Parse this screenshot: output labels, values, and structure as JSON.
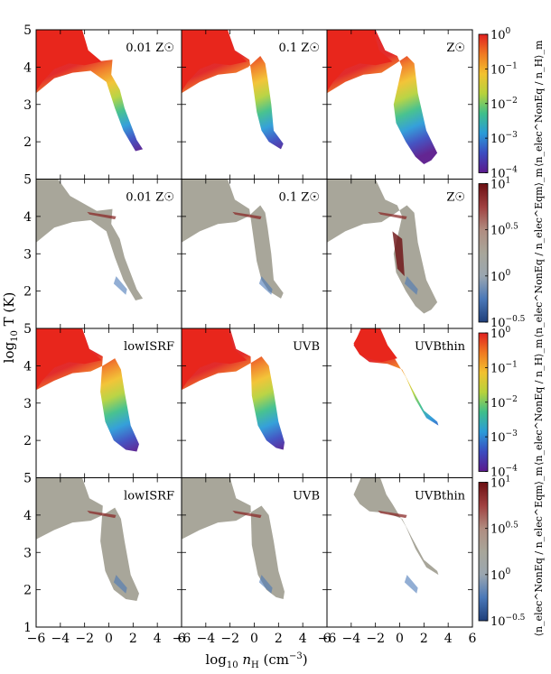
{
  "chart_data": {
    "type": "scatter",
    "title": "",
    "xlabel": "log10 nH (cm^-3)",
    "ylabel": "log10 T (K)",
    "xlim": [
      -6,
      6
    ],
    "ylim": [
      1,
      5
    ],
    "x_ticks": [
      -6,
      -4,
      -2,
      0,
      2,
      4,
      6
    ],
    "x_tick_labels": [
      "−6",
      "−4",
      "−2",
      "0",
      "2",
      "4",
      "6"
    ],
    "y_ticks": [
      1,
      2,
      3,
      4,
      5
    ],
    "y_tick_labels": [
      "1",
      "2",
      "3",
      "4",
      "5"
    ],
    "axis_labels": {
      "x": "log",
      "x_sub": "10",
      "x_mid": " n",
      "x_mid_sub": "H",
      "x_end": " (cm",
      "x_sup": "−3",
      "x_close": ")",
      "y": "log",
      "y_sub": "10",
      "y_mid": " T (K)"
    },
    "rows": [
      {
        "colormap": "fraction",
        "colorbar": {
          "label": "⟨n_elec^NonEq / n_H⟩_m",
          "ticks": [
            {
              "value": 0,
              "base": "10",
              "exp": "0"
            },
            {
              "value": -1,
              "base": "10",
              "exp": "−1"
            },
            {
              "value": -2,
              "base": "10",
              "exp": "−2"
            },
            {
              "value": -3,
              "base": "10",
              "exp": "−3"
            },
            {
              "value": -4,
              "base": "10",
              "exp": "−4"
            }
          ],
          "range": [
            -4,
            0
          ]
        },
        "panels": [
          {
            "label": "0.01 Z☉",
            "shape": "z001"
          },
          {
            "label": "0.1 Z☉",
            "shape": "z01"
          },
          {
            "label": "Z☉",
            "shape": "z1"
          }
        ]
      },
      {
        "colormap": "ratio",
        "colorbar": {
          "label": "⟨n_elec^NonEq / n_elec^Eqm⟩_m",
          "ticks": [
            {
              "value": 1,
              "base": "10",
              "exp": "1"
            },
            {
              "value": 0.5,
              "base": "10",
              "exp": "0.5"
            },
            {
              "value": 0,
              "base": "10",
              "exp": "0"
            },
            {
              "value": -0.5,
              "base": "10",
              "exp": "−0.5"
            }
          ],
          "range": [
            -0.5,
            1
          ]
        },
        "panels": [
          {
            "label": "0.01 Z☉",
            "shape": "z001"
          },
          {
            "label": "0.1 Z☉",
            "shape": "z01"
          },
          {
            "label": "Z☉",
            "shape": "z1"
          }
        ]
      },
      {
        "colormap": "fraction",
        "colorbar": {
          "label": "⟨n_elec^NonEq / n_H⟩_m",
          "ticks": [
            {
              "value": 0,
              "base": "10",
              "exp": "0"
            },
            {
              "value": -1,
              "base": "10",
              "exp": "−1"
            },
            {
              "value": -2,
              "base": "10",
              "exp": "−2"
            },
            {
              "value": -3,
              "base": "10",
              "exp": "−3"
            },
            {
              "value": -4,
              "base": "10",
              "exp": "−4"
            }
          ],
          "range": [
            -4,
            0
          ]
        },
        "panels": [
          {
            "label": "lowISRF",
            "shape": "lowISRF"
          },
          {
            "label": "UVB",
            "shape": "UVB"
          },
          {
            "label": "UVBthin",
            "shape": "UVBthin"
          }
        ]
      },
      {
        "colormap": "ratio",
        "colorbar": {
          "label": "⟨n_elec^NonEq / n_elec^Eqm⟩_m",
          "ticks": [
            {
              "value": 1,
              "base": "10",
              "exp": "1"
            },
            {
              "value": 0.5,
              "base": "10",
              "exp": "0.5"
            },
            {
              "value": 0,
              "base": "10",
              "exp": "0"
            },
            {
              "value": -0.5,
              "base": "10",
              "exp": "−0.5"
            }
          ],
          "range": [
            -0.5,
            1
          ]
        },
        "panels": [
          {
            "label": "lowISRF",
            "shape": "lowISRF"
          },
          {
            "label": "UVB",
            "shape": "UVB"
          },
          {
            "label": "UVBthin",
            "shape": "UVBthin"
          }
        ]
      }
    ]
  },
  "colors": {
    "background": "#ffffff",
    "axis": "#000000",
    "hot_gas": "#e8261c",
    "neutral": "#a8a69a",
    "fraction_cmap": [
      "#5b1a8c",
      "#3b4cc0",
      "#2a9bd8",
      "#3fbf8a",
      "#b6d23c",
      "#f2c12e",
      "#f07a22",
      "#e02020"
    ],
    "ratio_cmap": [
      "#1f3f7a",
      "#4a78b8",
      "#9aa6b0",
      "#a8a69a",
      "#b08c80",
      "#a04040",
      "#6b0f12"
    ]
  }
}
